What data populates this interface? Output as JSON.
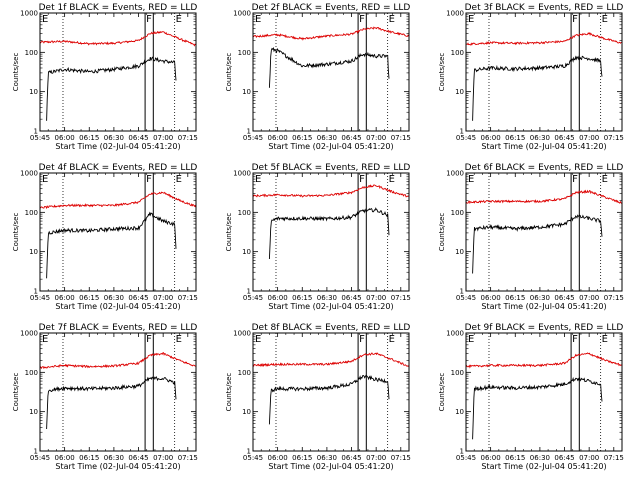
{
  "figure": {
    "xlabel": "Start Time (02-Jul-04 05:41:20)",
    "ylabel": "Counts/sec",
    "x_ticks": [
      "05:45",
      "06:00",
      "06:15",
      "06:30",
      "06:45",
      "07:00",
      "07:15"
    ],
    "y_ticks": [
      "1",
      "10",
      "100",
      "1000"
    ],
    "marker_labels": [
      "E",
      "F",
      "E"
    ],
    "colors": {
      "events": "#000000",
      "lld": "#dd0000",
      "axes": "#000000"
    }
  },
  "chart_data": [
    {
      "type": "line",
      "title": "Det 1f BLACK = Events, RED = LLD",
      "xlim": [
        "05:45",
        "07:20"
      ],
      "ylim": [
        1,
        1000
      ],
      "yscale": "log",
      "series": [
        {
          "name": "LLD",
          "color": "#dd0000",
          "x": [
            "05:45",
            "06:00",
            "06:15",
            "06:30",
            "06:45",
            "06:52",
            "07:00",
            "07:10",
            "07:20"
          ],
          "values": [
            180,
            190,
            165,
            170,
            200,
            300,
            330,
            220,
            150
          ]
        },
        {
          "name": "Events",
          "color": "#000000",
          "x": [
            "05:49",
            "05:50",
            "06:00",
            "06:15",
            "06:30",
            "06:45",
            "06:52",
            "07:00",
            "07:07",
            "07:08"
          ],
          "values": [
            2,
            30,
            37,
            32,
            37,
            45,
            70,
            60,
            55,
            15
          ]
        }
      ]
    },
    {
      "type": "line",
      "title": "Det 2f BLACK = Events, RED = LLD",
      "xlim": [
        "05:45",
        "07:20"
      ],
      "ylim": [
        1,
        1000
      ],
      "yscale": "log",
      "series": [
        {
          "name": "LLD",
          "color": "#dd0000",
          "x": [
            "05:45",
            "06:00",
            "06:15",
            "06:30",
            "06:45",
            "06:52",
            "07:00",
            "07:10",
            "07:20"
          ],
          "values": [
            250,
            280,
            220,
            260,
            290,
            380,
            420,
            320,
            260
          ]
        },
        {
          "name": "Events",
          "color": "#000000",
          "x": [
            "05:55",
            "05:56",
            "06:00",
            "06:15",
            "06:30",
            "06:45",
            "06:52",
            "07:00",
            "07:07",
            "07:08"
          ],
          "values": [
            12,
            120,
            110,
            45,
            50,
            60,
            90,
            80,
            80,
            15
          ]
        }
      ]
    },
    {
      "type": "line",
      "title": "Det 3f BLACK = Events, RED = LLD",
      "xlim": [
        "05:45",
        "07:20"
      ],
      "ylim": [
        1,
        1000
      ],
      "yscale": "log",
      "series": [
        {
          "name": "LLD",
          "color": "#dd0000",
          "x": [
            "05:45",
            "06:00",
            "06:15",
            "06:30",
            "06:45",
            "06:52",
            "07:00",
            "07:10",
            "07:20"
          ],
          "values": [
            160,
            175,
            170,
            175,
            190,
            270,
            300,
            220,
            170
          ]
        },
        {
          "name": "Events",
          "color": "#000000",
          "x": [
            "05:49",
            "05:50",
            "06:00",
            "06:15",
            "06:30",
            "06:45",
            "06:52",
            "07:00",
            "07:07",
            "07:08"
          ],
          "values": [
            2,
            35,
            40,
            38,
            40,
            45,
            75,
            70,
            60,
            18
          ]
        }
      ]
    },
    {
      "type": "line",
      "title": "Det 4f BLACK = Events, RED = LLD",
      "xlim": [
        "05:45",
        "07:20"
      ],
      "ylim": [
        1,
        1000
      ],
      "yscale": "log",
      "series": [
        {
          "name": "LLD",
          "color": "#dd0000",
          "x": [
            "05:45",
            "06:00",
            "06:15",
            "06:30",
            "06:45",
            "06:52",
            "07:00",
            "07:10",
            "07:20"
          ],
          "values": [
            130,
            150,
            150,
            150,
            180,
            290,
            320,
            200,
            140
          ]
        },
        {
          "name": "Events",
          "color": "#000000",
          "x": [
            "05:49",
            "05:50",
            "06:00",
            "06:15",
            "06:30",
            "06:45",
            "06:52",
            "07:00",
            "07:07",
            "07:08"
          ],
          "values": [
            2,
            30,
            35,
            34,
            38,
            40,
            90,
            60,
            50,
            8
          ]
        }
      ]
    },
    {
      "type": "line",
      "title": "Det 5f BLACK = Events, RED = LLD",
      "xlim": [
        "05:45",
        "07:20"
      ],
      "ylim": [
        1,
        1000
      ],
      "yscale": "log",
      "series": [
        {
          "name": "LLD",
          "color": "#dd0000",
          "x": [
            "05:45",
            "06:00",
            "06:15",
            "06:30",
            "06:45",
            "06:52",
            "07:00",
            "07:10",
            "07:20"
          ],
          "values": [
            260,
            280,
            260,
            270,
            320,
            430,
            480,
            330,
            250
          ]
        },
        {
          "name": "Events",
          "color": "#000000",
          "x": [
            "05:55",
            "05:56",
            "06:00",
            "06:15",
            "06:30",
            "06:45",
            "06:52",
            "07:00",
            "07:07",
            "07:08"
          ],
          "values": [
            6,
            60,
            70,
            70,
            68,
            75,
            110,
            115,
            85,
            20
          ]
        }
      ]
    },
    {
      "type": "line",
      "title": "Det 6f BLACK = Events, RED = LLD",
      "xlim": [
        "05:45",
        "07:20"
      ],
      "ylim": [
        1,
        1000
      ],
      "yscale": "log",
      "series": [
        {
          "name": "LLD",
          "color": "#dd0000",
          "x": [
            "05:45",
            "06:00",
            "06:15",
            "06:30",
            "06:45",
            "06:52",
            "07:00",
            "07:10",
            "07:20"
          ],
          "values": [
            180,
            190,
            190,
            190,
            220,
            320,
            340,
            240,
            170
          ]
        },
        {
          "name": "Events",
          "color": "#000000",
          "x": [
            "05:49",
            "05:50",
            "06:00",
            "06:15",
            "06:30",
            "06:45",
            "06:52",
            "07:00",
            "07:07",
            "07:08"
          ],
          "values": [
            3,
            38,
            42,
            38,
            42,
            50,
            80,
            70,
            60,
            20
          ]
        }
      ]
    },
    {
      "type": "line",
      "title": "Det 7f BLACK = Events, RED = LLD",
      "xlim": [
        "05:45",
        "07:20"
      ],
      "ylim": [
        1,
        1000
      ],
      "yscale": "log",
      "series": [
        {
          "name": "LLD",
          "color": "#dd0000",
          "x": [
            "05:45",
            "06:00",
            "06:15",
            "06:30",
            "06:45",
            "06:52",
            "07:00",
            "07:10",
            "07:20"
          ],
          "values": [
            130,
            150,
            140,
            145,
            170,
            270,
            300,
            200,
            140
          ]
        },
        {
          "name": "Events",
          "color": "#000000",
          "x": [
            "05:49",
            "05:50",
            "06:00",
            "06:15",
            "06:30",
            "06:45",
            "06:52",
            "07:00",
            "07:07",
            "07:08"
          ],
          "values": [
            4,
            35,
            40,
            38,
            40,
            45,
            70,
            70,
            55,
            15
          ]
        }
      ]
    },
    {
      "type": "line",
      "title": "Det 8f BLACK = Events, RED = LLD",
      "xlim": [
        "05:45",
        "07:20"
      ],
      "ylim": [
        1,
        1000
      ],
      "yscale": "log",
      "series": [
        {
          "name": "LLD",
          "color": "#dd0000",
          "x": [
            "05:45",
            "06:00",
            "06:15",
            "06:30",
            "06:45",
            "06:52",
            "07:00",
            "07:10",
            "07:20"
          ],
          "values": [
            150,
            160,
            160,
            160,
            190,
            280,
            300,
            210,
            140
          ]
        },
        {
          "name": "Events",
          "color": "#000000",
          "x": [
            "05:55",
            "05:56",
            "06:00",
            "06:15",
            "06:30",
            "06:45",
            "06:52",
            "07:00",
            "07:07",
            "07:08"
          ],
          "values": [
            5,
            35,
            38,
            38,
            40,
            50,
            80,
            65,
            60,
            18
          ]
        }
      ]
    },
    {
      "type": "line",
      "title": "Det 9f BLACK = Events, RED = LLD",
      "xlim": [
        "05:45",
        "07:20"
      ],
      "ylim": [
        1,
        1000
      ],
      "yscale": "log",
      "series": [
        {
          "name": "LLD",
          "color": "#dd0000",
          "x": [
            "05:45",
            "06:00",
            "06:15",
            "06:30",
            "06:45",
            "06:52",
            "07:00",
            "07:10",
            "07:20"
          ],
          "values": [
            140,
            150,
            150,
            150,
            170,
            270,
            300,
            200,
            150
          ]
        },
        {
          "name": "Events",
          "color": "#000000",
          "x": [
            "05:49",
            "05:50",
            "06:00",
            "06:15",
            "06:30",
            "06:45",
            "06:52",
            "07:00",
            "07:07",
            "07:08"
          ],
          "values": [
            2,
            38,
            42,
            40,
            42,
            50,
            70,
            60,
            50,
            15
          ]
        }
      ]
    }
  ]
}
